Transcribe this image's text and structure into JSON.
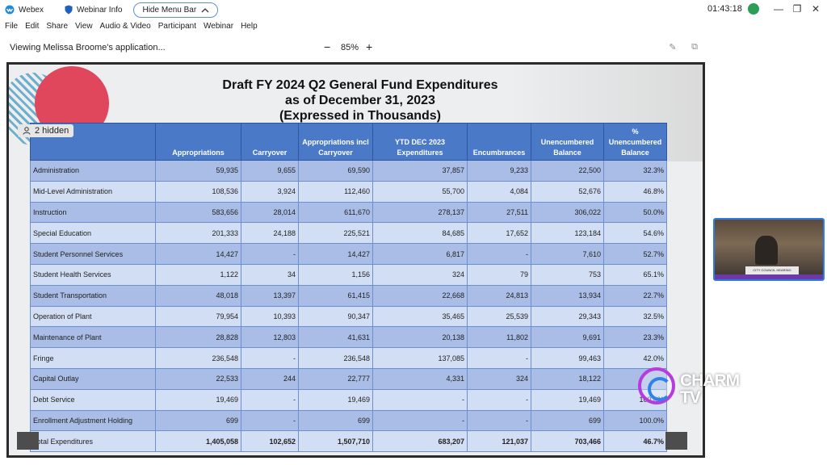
{
  "titlebar": {
    "app_name": "Webex",
    "webinar_info": "Webinar Info",
    "hide_menu_bar": "Hide Menu Bar",
    "clock": "01:43:18"
  },
  "menu": [
    "File",
    "Edit",
    "Share",
    "View",
    "Audio & Video",
    "Participant",
    "Webinar",
    "Help"
  ],
  "viewbar": {
    "viewing_text": "Viewing Melissa Broome's application...",
    "zoom_minus": "−",
    "zoom_level": "85%",
    "zoom_plus": "+"
  },
  "hidden_badge": "2 hidden",
  "document": {
    "title_line1": "Draft FY 2024 Q2 General Fund Expenditures",
    "title_line2": "as of December 31, 2023",
    "title_line3": "(Expressed in Thousands)"
  },
  "table": {
    "headers": [
      "",
      "Appropriations",
      "Carryover",
      "Appropriations incl Carryover",
      "YTD DEC 2023 Expenditures",
      "Encumbrances",
      "Unencumbered Balance",
      "% Unencumbered Balance"
    ],
    "rows": [
      [
        "Administration",
        "59,935",
        "9,655",
        "69,590",
        "37,857",
        "9,233",
        "22,500",
        "32.3%"
      ],
      [
        "Mid-Level Administration",
        "108,536",
        "3,924",
        "112,460",
        "55,700",
        "4,084",
        "52,676",
        "46.8%"
      ],
      [
        "Instruction",
        "583,656",
        "28,014",
        "611,670",
        "278,137",
        "27,511",
        "306,022",
        "50.0%"
      ],
      [
        "Special Education",
        "201,333",
        "24,188",
        "225,521",
        "84,685",
        "17,652",
        "123,184",
        "54.6%"
      ],
      [
        "Student Personnel Services",
        "14,427",
        "-",
        "14,427",
        "6,817",
        "-",
        "7,610",
        "52.7%"
      ],
      [
        "Student Health Services",
        "1,122",
        "34",
        "1,156",
        "324",
        "79",
        "753",
        "65.1%"
      ],
      [
        "Student Transportation",
        "48,018",
        "13,397",
        "61,415",
        "22,668",
        "24,813",
        "13,934",
        "22.7%"
      ],
      [
        "Operation of Plant",
        "79,954",
        "10,393",
        "90,347",
        "35,465",
        "25,539",
        "29,343",
        "32.5%"
      ],
      [
        "Maintenance of Plant",
        "28,828",
        "12,803",
        "41,631",
        "20,138",
        "11,802",
        "9,691",
        "23.3%"
      ],
      [
        "Fringe",
        "236,548",
        "-",
        "236,548",
        "137,085",
        "-",
        "99,463",
        "42.0%"
      ],
      [
        "Capital Outlay",
        "22,533",
        "244",
        "22,777",
        "4,331",
        "324",
        "18,122",
        ""
      ],
      [
        "Debt Service",
        "19,469",
        "-",
        "19,469",
        "-",
        "-",
        "19,469",
        "100.0%"
      ],
      [
        "Enrollment Adjustment Holding",
        "699",
        "-",
        "699",
        "-",
        "-",
        "699",
        "100.0%"
      ],
      [
        "Total Expenditures",
        "1,405,058",
        "102,652",
        "1,507,710",
        "683,207",
        "121,037",
        "703,466",
        "46.7%"
      ]
    ]
  },
  "watermark": {
    "line1": "CHARM",
    "line2": "TV"
  },
  "video": {
    "banner": "CITY COUNCIL HEARING"
  }
}
